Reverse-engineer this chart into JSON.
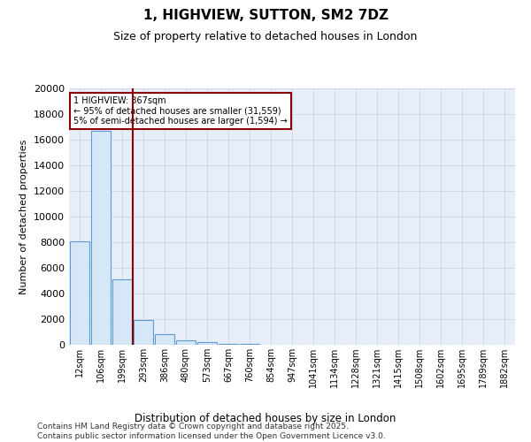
{
  "title": "1, HIGHVIEW, SUTTON, SM2 7DZ",
  "subtitle": "Size of property relative to detached houses in London",
  "xlabel": "Distribution of detached houses by size in London",
  "ylabel": "Number of detached properties",
  "bar_color": "#d6e8f7",
  "bar_edge_color": "#5b9bd5",
  "grid_color": "#c8d4e8",
  "background_color": "#e8eef8",
  "annotation_box_color": "#8b0000",
  "vline_color": "#8b0000",
  "annotation_text": "1 HIGHVIEW: 367sqm\n← 95% of detached houses are smaller (31,559)\n5% of semi-detached houses are larger (1,594) →",
  "footnote": "Contains HM Land Registry data © Crown copyright and database right 2025.\nContains public sector information licensed under the Open Government Licence v3.0.",
  "categories": [
    "12sqm",
    "106sqm",
    "199sqm",
    "293sqm",
    "386sqm",
    "480sqm",
    "573sqm",
    "667sqm",
    "760sqm",
    "854sqm",
    "947sqm",
    "1041sqm",
    "1134sqm",
    "1228sqm",
    "1321sqm",
    "1415sqm",
    "1508sqm",
    "1602sqm",
    "1695sqm",
    "1789sqm",
    "1882sqm"
  ],
  "values": [
    8100,
    16700,
    5100,
    1900,
    800,
    350,
    180,
    90,
    45,
    20,
    8,
    3,
    1,
    1,
    0,
    0,
    0,
    0,
    0,
    0,
    0
  ],
  "ylim": [
    0,
    20000
  ],
  "yticks": [
    0,
    2000,
    4000,
    6000,
    8000,
    10000,
    12000,
    14000,
    16000,
    18000,
    20000
  ],
  "vline_pos": 2.5
}
